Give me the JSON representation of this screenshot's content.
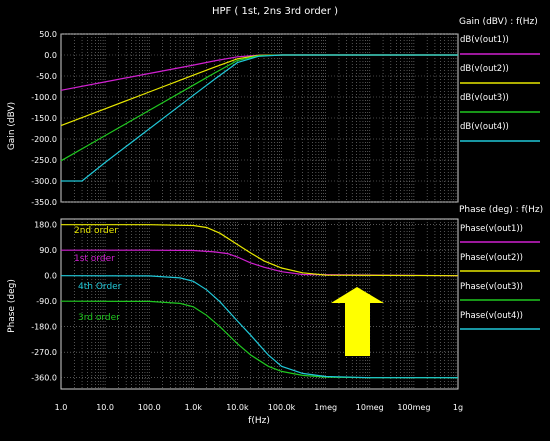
{
  "chart_data": {
    "title": "HPF ( 1st, 2ns 3rd order )",
    "xlabel": "f(Hz)",
    "x_scale": "log",
    "x_ticks": [
      "1.0",
      "10.0",
      "100.0",
      "1.0k",
      "10.0k",
      "100.0k",
      "1meg",
      "10meg",
      "100meg",
      "1g"
    ],
    "panels": [
      {
        "type": "line",
        "ylabel": "Gain (dBV)",
        "ylim": [
          -350,
          50
        ],
        "y_ticks": [
          "50.0",
          "0.0",
          "-50.0",
          "-100.0",
          "-150.0",
          "-200.0",
          "-250.0",
          "-300.0",
          "-350.0"
        ],
        "legend_title": "Gain (dBV) : f(Hz)",
        "grid": true,
        "series": [
          {
            "name": "dB(v(out1))",
            "color": "#d020d0",
            "x": [
              1,
              10,
              100,
              1000,
              3000,
              10000,
              30000,
              100000,
              1000000,
              1000000000
            ],
            "y": [
              -84,
              -64,
              -44,
              -24,
              -14,
              -4.3,
              -0.5,
              0,
              0,
              0
            ]
          },
          {
            "name": "dB(v(out2))",
            "color": "#e8e800",
            "x": [
              1,
              10,
              100,
              1000,
              3000,
              10000,
              30000,
              100000,
              1000000,
              1000000000
            ],
            "y": [
              -168,
              -128,
              -88,
              -48,
              -29,
              -9,
              -1,
              0,
              0,
              0
            ]
          },
          {
            "name": "dB(v(out3))",
            "color": "#20c820",
            "x": [
              1,
              10,
              100,
              1000,
              3000,
              10000,
              30000,
              100000,
              1000000,
              1000000000
            ],
            "y": [
              -252,
              -192,
              -132,
              -72,
              -43,
              -13,
              -2,
              0,
              0,
              0
            ]
          },
          {
            "name": "dB(v(out4))",
            "color": "#20c8d8",
            "x": [
              1,
              3,
              10,
              100,
              1000,
              3000,
              10000,
              30000,
              100000,
              1000000,
              1000000000
            ],
            "y": [
              -300,
              -300,
              -256,
              -176,
              -96,
              -58,
              -18,
              -3,
              0,
              0,
              0
            ]
          }
        ]
      },
      {
        "type": "line",
        "ylabel": "Phase (deg)",
        "ylim": [
          -400,
          200
        ],
        "y_ticks": [
          "180.0",
          "90.0",
          "0.0",
          "-90.0",
          "-180.0",
          "-270.0",
          "-360.0"
        ],
        "legend_title": "Phase (deg) : f(Hz)",
        "grid": true,
        "series": [
          {
            "name": "Phase(v(out1))",
            "color": "#d020d0",
            "x": [
              1,
              100,
              1000,
              3000,
              6000,
              10000,
              20000,
              40000,
              100000,
              300000,
              1000000000
            ],
            "y": [
              90,
              90,
              89,
              84,
              78,
              66,
              45,
              30,
              14,
              4,
              0
            ]
          },
          {
            "name": "Phase(v(out2))",
            "color": "#e8e800",
            "x": [
              1,
              100,
              1000,
              2000,
              4000,
              10000,
              20000,
              40000,
              100000,
              300000,
              1000000,
              1000000000
            ],
            "y": [
              180,
              180,
              177,
              170,
              150,
              110,
              80,
              52,
              27,
              10,
              2,
              0
            ]
          },
          {
            "name": "Phase(v(out3))",
            "color": "#20c820",
            "x": [
              1,
              100,
              500,
              1000,
              2000,
              4000,
              10000,
              20000,
              50000,
              100000,
              300000,
              1000000,
              10000000,
              1000000000
            ],
            "y": [
              -90,
              -91,
              -98,
              -110,
              -140,
              -180,
              -240,
              -280,
              -320,
              -338,
              -352,
              -358,
              -360,
              -360
            ]
          },
          {
            "name": "Phase(v(out4))",
            "color": "#20c8d8",
            "x": [
              1,
              100,
              500,
              1000,
              2000,
              4000,
              10000,
              20000,
              50000,
              100000,
              300000,
              1000000,
              10000000,
              1000000000
            ],
            "y": [
              0,
              -1,
              -8,
              -20,
              -50,
              -92,
              -160,
              -210,
              -280,
              -320,
              -345,
              -356,
              -360,
              -360
            ]
          }
        ],
        "annotations": [
          {
            "text": "2nd order",
            "color": "#e8e800"
          },
          {
            "text": "1st order",
            "color": "#d020d0"
          },
          {
            "text": "4th Order",
            "color": "#20c8d8"
          },
          {
            "text": "3rd order",
            "color": "#20c820"
          }
        ]
      }
    ]
  }
}
